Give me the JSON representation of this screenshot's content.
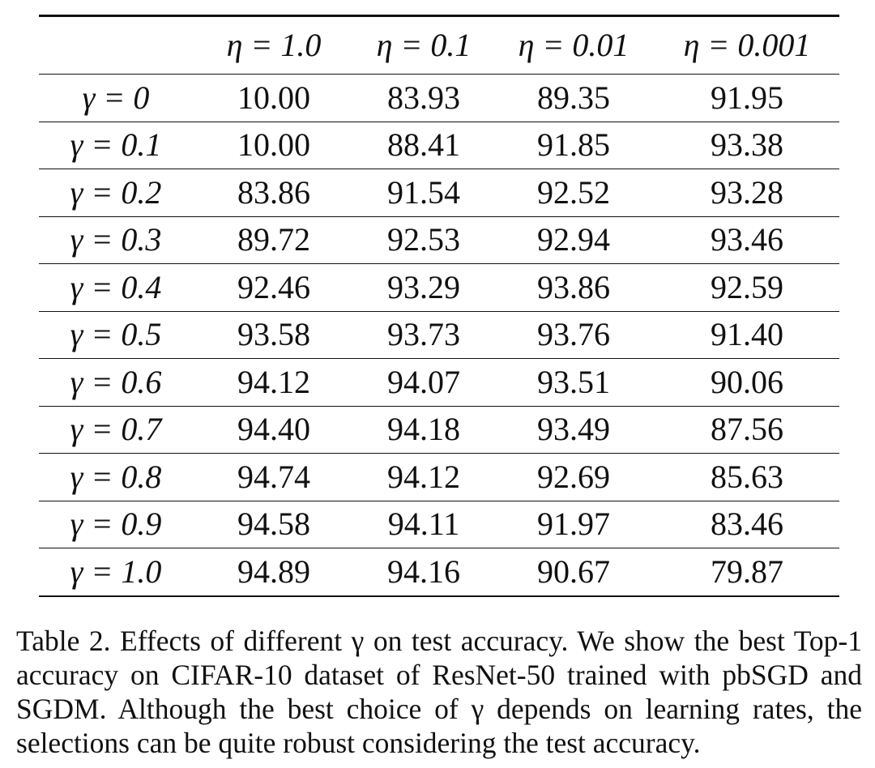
{
  "table": {
    "column_headers": [
      "η = 1.0",
      "η = 0.1",
      "η = 0.01",
      "η = 0.001"
    ],
    "row_headers": [
      "γ = 0",
      "γ = 0.1",
      "γ = 0.2",
      "γ = 0.3",
      "γ = 0.4",
      "γ = 0.5",
      "γ = 0.6",
      "γ = 0.7",
      "γ = 0.8",
      "γ = 0.9",
      "γ = 1.0"
    ],
    "rows": [
      [
        "10.00",
        "83.93",
        "89.35",
        "91.95"
      ],
      [
        "10.00",
        "88.41",
        "91.85",
        "93.38"
      ],
      [
        "83.86",
        "91.54",
        "92.52",
        "93.28"
      ],
      [
        "89.72",
        "92.53",
        "92.94",
        "93.46"
      ],
      [
        "92.46",
        "93.29",
        "93.86",
        "92.59"
      ],
      [
        "93.58",
        "93.73",
        "93.76",
        "91.40"
      ],
      [
        "94.12",
        "94.07",
        "93.51",
        "90.06"
      ],
      [
        "94.40",
        "94.18",
        "93.49",
        "87.56"
      ],
      [
        "94.74",
        "94.12",
        "92.69",
        "85.63"
      ],
      [
        "94.58",
        "94.11",
        "91.97",
        "83.46"
      ],
      [
        "94.89",
        "94.16",
        "90.67",
        "79.87"
      ]
    ]
  },
  "caption": "Table 2. Effects of different γ on test accuracy. We show the best Top-1 accuracy on CIFAR-10 dataset of ResNet-50 trained with pbSGD and SGDM. Although the best choice of γ depends on learning rates, the selections can be quite robust considering the test accuracy."
}
